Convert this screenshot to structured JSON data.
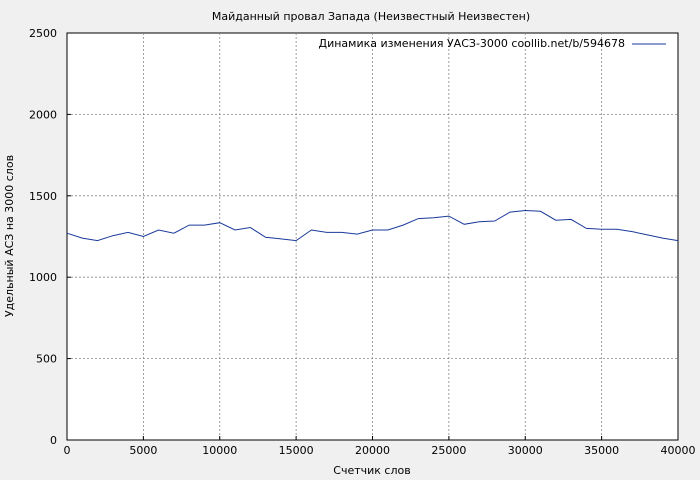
{
  "chart_data": {
    "type": "line",
    "title": "Майданный провал Запада (Неизвестный Неизвестен)",
    "xlabel": "Счетчик слов",
    "ylabel": "Удельный АСЗ на 3000 слов",
    "xlim": [
      0,
      40000
    ],
    "ylim": [
      0,
      2500
    ],
    "xticks": [
      0,
      5000,
      10000,
      15000,
      20000,
      25000,
      30000,
      35000,
      40000
    ],
    "yticks": [
      0,
      500,
      1000,
      1500,
      2000,
      2500
    ],
    "grid": true,
    "legend_position": "top-right",
    "series": [
      {
        "name": "Динамика изменения УАСЗ-3000 coollib.net/b/594678",
        "color": "#1a3a9a",
        "x": [
          0,
          1000,
          2000,
          3000,
          4000,
          5000,
          6000,
          7000,
          8000,
          9000,
          10000,
          11000,
          12000,
          13000,
          14000,
          15000,
          16000,
          17000,
          18000,
          19000,
          20000,
          21000,
          22000,
          23000,
          24000,
          25000,
          26000,
          27000,
          28000,
          29000,
          30000,
          31000,
          32000,
          33000,
          34000,
          35000,
          36000,
          37000,
          38000,
          39000,
          40000
        ],
        "y": [
          1270,
          1240,
          1225,
          1255,
          1275,
          1250,
          1290,
          1270,
          1320,
          1320,
          1335,
          1290,
          1305,
          1245,
          1235,
          1225,
          1290,
          1275,
          1275,
          1265,
          1290,
          1290,
          1320,
          1360,
          1365,
          1375,
          1325,
          1340,
          1345,
          1400,
          1410,
          1405,
          1350,
          1355,
          1300,
          1295,
          1295,
          1280,
          1260,
          1240,
          1225
        ]
      }
    ]
  }
}
